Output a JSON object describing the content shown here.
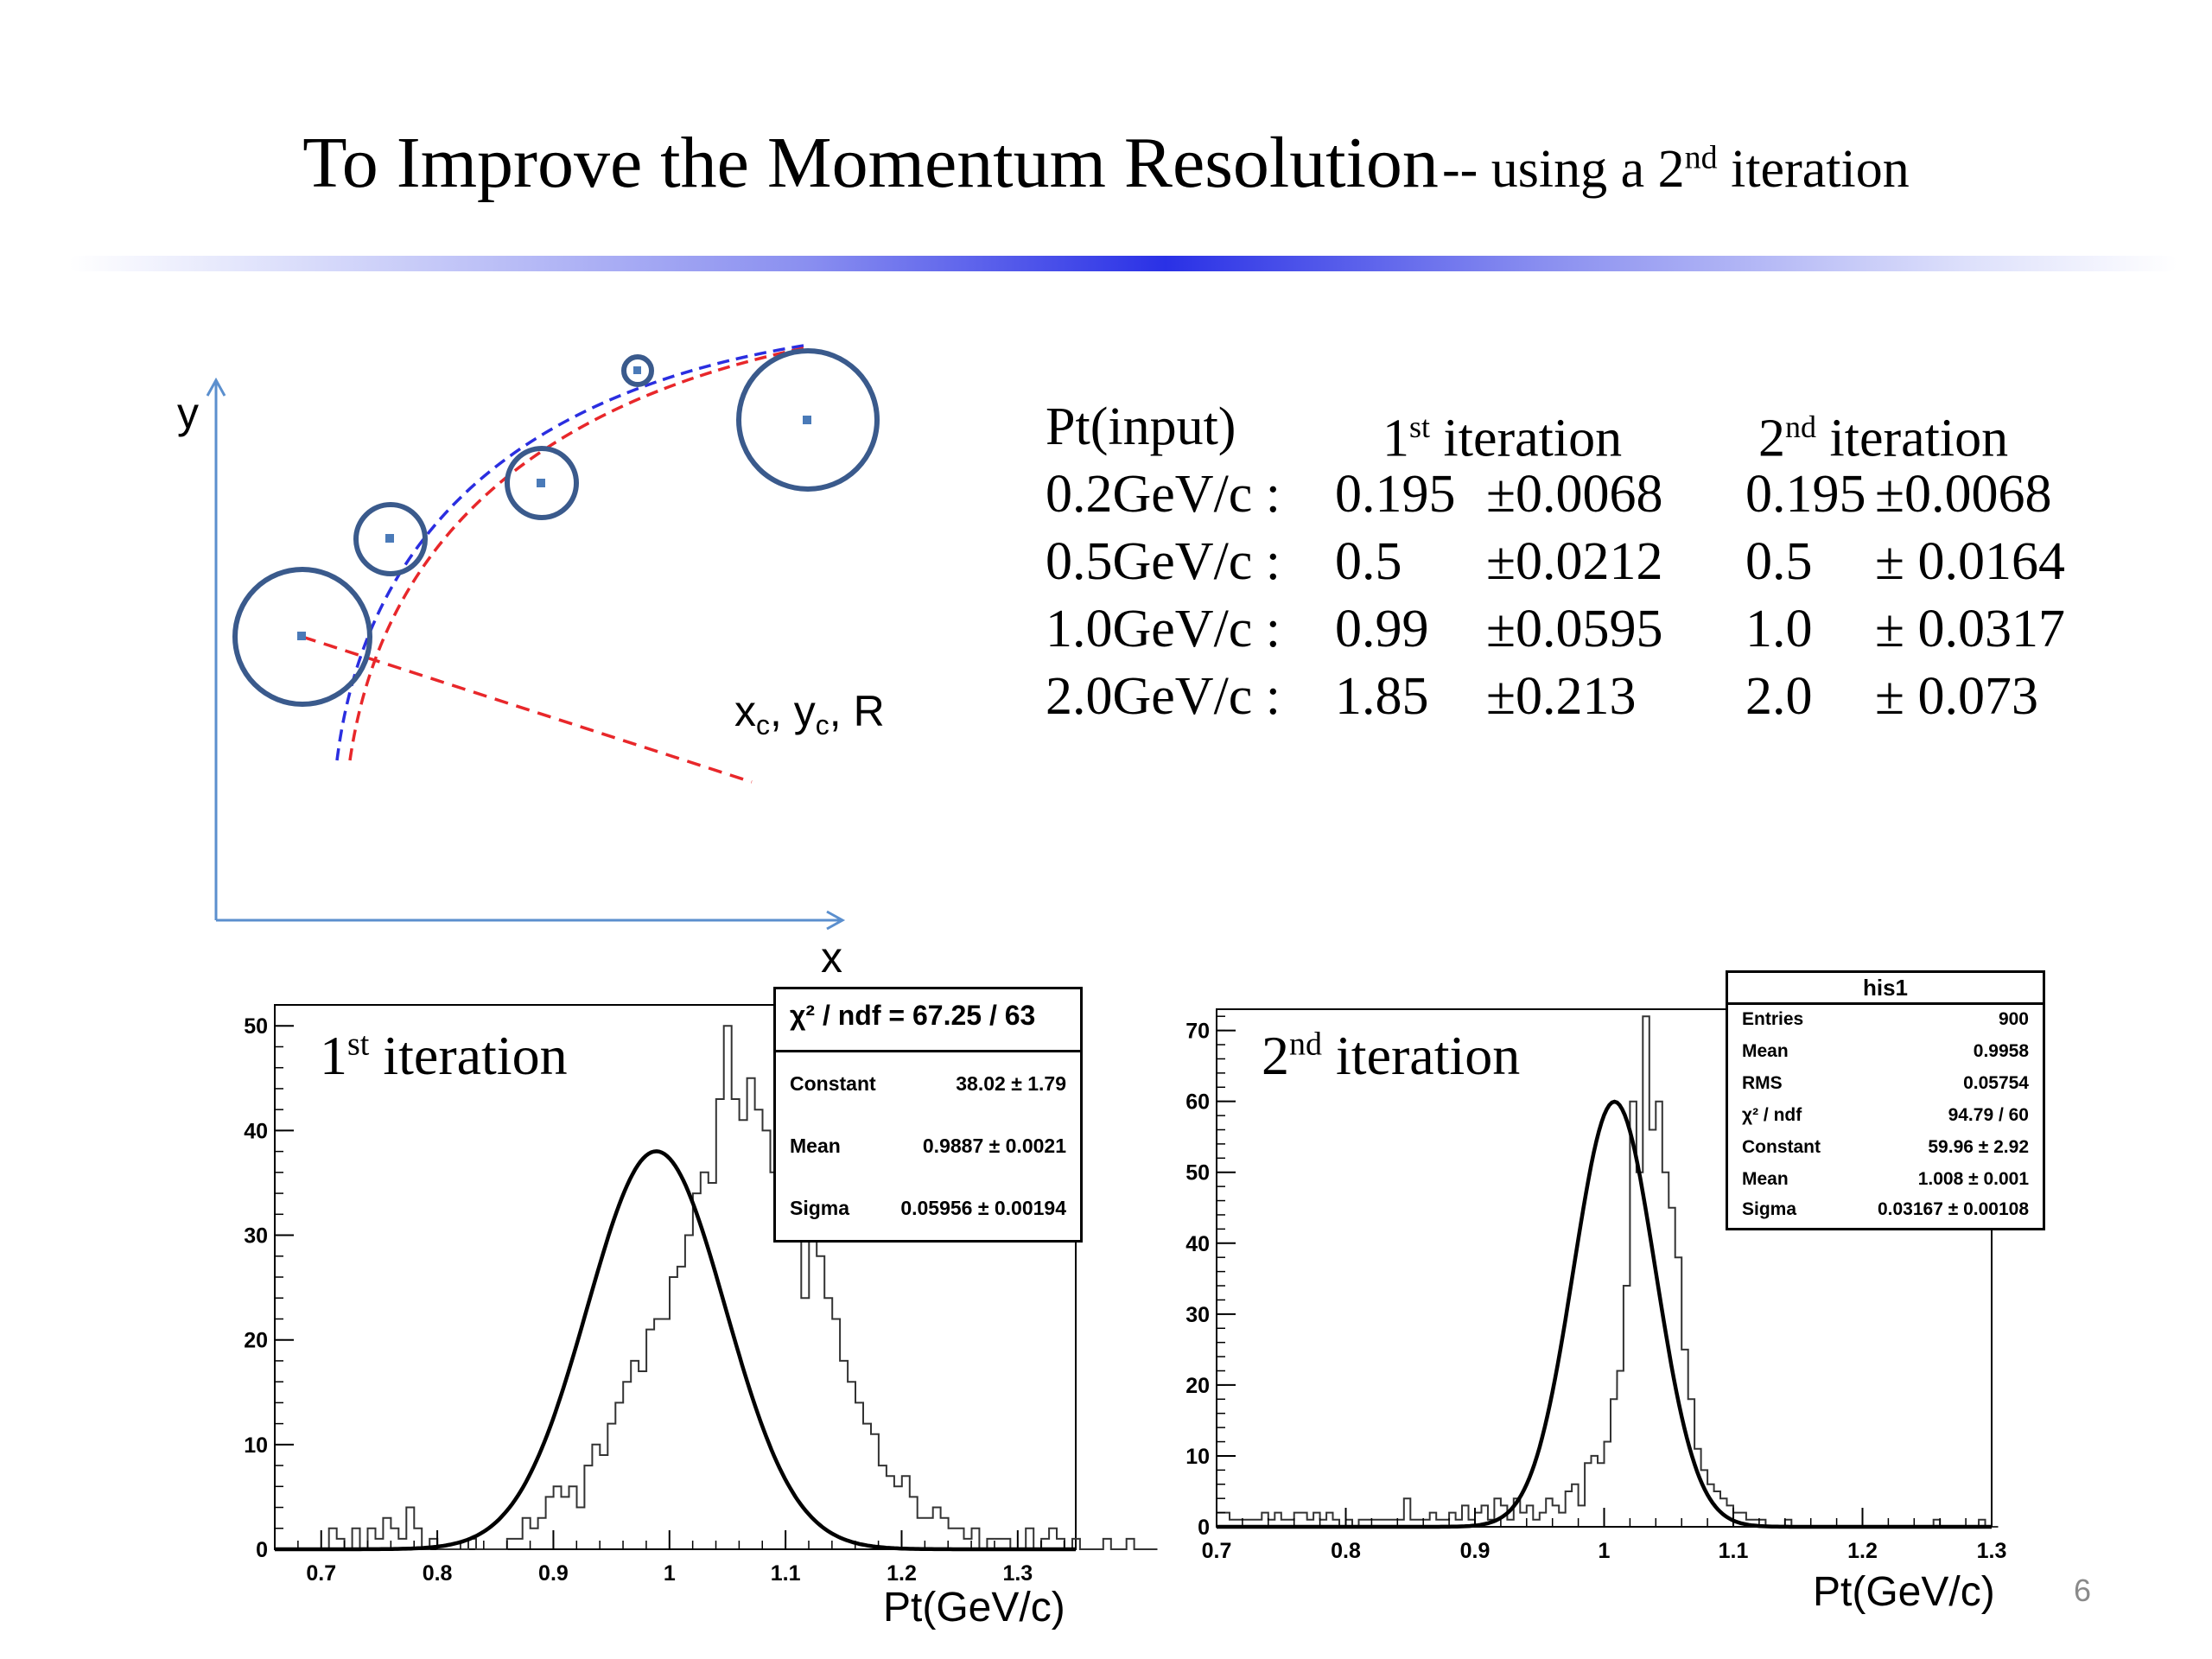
{
  "title": {
    "main": "To Improve the Momentum Resolution",
    "sub_prefix": "-- using a 2",
    "sub_sup": "nd",
    "sub_suffix": " iteration"
  },
  "diagram": {
    "y_label": "y",
    "x_label": "x",
    "center_label": "x",
    "center_label_c1": "c",
    "center_label_mid": ", y",
    "center_label_c2": "c",
    "center_label_end": ", R"
  },
  "results_table": {
    "header": {
      "col0": "Pt(input)",
      "col1_pre": "1",
      "col1_sup": "st",
      "col1_post": " iteration",
      "col2_pre": "2",
      "col2_sup": "nd",
      "col2_post": " iteration"
    },
    "rows": [
      {
        "input": "0.2GeV/c :",
        "it1_val": "0.195",
        "it1_err": "±0.0068",
        "it2_val": "0.195",
        "it2_err": "±0.0068"
      },
      {
        "input": "0.5GeV/c :",
        "it1_val": "0.5",
        "it1_err": "±0.0212",
        "it2_val": "0.5",
        "it2_err": "± 0.0164"
      },
      {
        "input": "1.0GeV/c :",
        "it1_val": "0.99",
        "it1_err": "±0.0595",
        "it2_val": "1.0",
        "it2_err": "± 0.0317"
      },
      {
        "input": "2.0GeV/c :",
        "it1_val": "1.85",
        "it1_err": "±0.213",
        "it2_val": "2.0",
        "it2_err": "± 0.073"
      }
    ]
  },
  "hist1": {
    "label_pre": "1",
    "label_sup": "st",
    "label_post": " iteration",
    "xunit": "Pt(GeV/c)",
    "stats": {
      "chi_label": "χ² / ndf = 67.25 / 63",
      "rows": [
        {
          "k": "Constant",
          "v": "38.02 ± 1.79"
        },
        {
          "k": "Mean",
          "v": "0.9887 ± 0.0021"
        },
        {
          "k": "Sigma",
          "v": "0.05956 ± 0.00194"
        }
      ]
    }
  },
  "hist2": {
    "label_pre": "2",
    "label_sup": "nd",
    "label_post": " iteration",
    "xunit": "Pt(GeV/c)",
    "stats": {
      "title": "his1",
      "rows": [
        {
          "k": "Entries",
          "v": "900"
        },
        {
          "k": "Mean",
          "v": "0.9958"
        },
        {
          "k": "RMS",
          "v": "0.05754"
        },
        {
          "k": "χ² / ndf",
          "v": "94.79 / 60"
        },
        {
          "k": "Constant",
          "v": "59.96 ± 2.92"
        },
        {
          "k": "Mean",
          "v": "1.008 ± 0.001"
        },
        {
          "k": "Sigma",
          "v": "0.03167 ± 0.00108"
        }
      ]
    }
  },
  "page_number": "6",
  "colors": {
    "diagram_axis": "#5b8fce",
    "circle": "#3a5a8c",
    "track_blue": "#2a2ee0",
    "track_red": "#e8272a"
  },
  "chart_data": [
    {
      "type": "bar",
      "name": "1st iteration",
      "xlim": [
        0.66,
        1.35
      ],
      "ylim": [
        0,
        52
      ],
      "xticks": [
        0.7,
        0.8,
        0.9,
        1,
        1.1,
        1.2,
        1.3
      ],
      "yticks": [
        0,
        10,
        20,
        30,
        40,
        50
      ],
      "bin_width": 0.00667,
      "x_start": 0.7,
      "values": [
        0,
        2,
        1,
        0,
        2,
        0,
        2,
        1,
        3,
        2,
        1,
        4,
        2,
        0,
        1,
        0,
        0,
        0,
        0,
        1,
        0,
        0,
        0,
        0,
        1,
        1,
        3,
        2,
        3,
        5,
        6,
        5,
        6,
        4,
        8,
        10,
        9,
        12,
        14,
        16,
        18,
        17,
        21,
        22,
        22,
        26,
        27,
        30,
        34,
        36,
        35,
        43,
        50,
        43,
        41,
        45,
        42,
        40,
        36,
        38,
        35,
        34,
        24,
        30,
        28,
        24,
        22,
        18,
        16,
        14,
        12,
        11,
        8,
        7,
        6,
        7,
        5,
        3,
        3,
        4,
        3,
        2,
        2,
        1,
        2,
        0,
        1,
        1,
        1,
        0,
        0,
        2,
        0,
        1,
        2,
        1,
        0,
        1,
        0,
        0,
        0,
        1,
        0,
        0,
        1,
        0,
        0,
        0
      ],
      "fit": {
        "constant": 38.02,
        "mean": 0.9887,
        "sigma": 0.05956
      }
    },
    {
      "type": "bar",
      "name": "2nd iteration",
      "xlim": [
        0.7,
        1.3
      ],
      "ylim": [
        0,
        73
      ],
      "xticks": [
        0.7,
        0.8,
        0.9,
        1,
        1.1,
        1.2,
        1.3
      ],
      "yticks": [
        0,
        10,
        20,
        30,
        40,
        50,
        60,
        70
      ],
      "bin_width": 0.005,
      "x_start": 0.7,
      "values": [
        2,
        2,
        1,
        1,
        1,
        1,
        1,
        2,
        1,
        2,
        1,
        1,
        2,
        2,
        1,
        2,
        1,
        2,
        1,
        0,
        1,
        0,
        1,
        1,
        1,
        1,
        1,
        1,
        1,
        4,
        1,
        1,
        1,
        2,
        1,
        1,
        2,
        1,
        3,
        1,
        2,
        3,
        1,
        4,
        3,
        1,
        4,
        2,
        3,
        1,
        2,
        4,
        3,
        2,
        5,
        6,
        3,
        9,
        10,
        9,
        12,
        18,
        22,
        34,
        60,
        50,
        72,
        56,
        60,
        50,
        45,
        38,
        25,
        18,
        11,
        8,
        6,
        5,
        4,
        3,
        2,
        2,
        1,
        1,
        1,
        0,
        0,
        0,
        1,
        0,
        0,
        0,
        0,
        0,
        0,
        0,
        0,
        0,
        0,
        0,
        0,
        0,
        0,
        0,
        0,
        0,
        0,
        0,
        0,
        0,
        0,
        1,
        0,
        0,
        0,
        0,
        0,
        0,
        1,
        0,
        0
      ],
      "fit": {
        "constant": 59.96,
        "mean": 1.008,
        "sigma": 0.03167
      }
    }
  ]
}
